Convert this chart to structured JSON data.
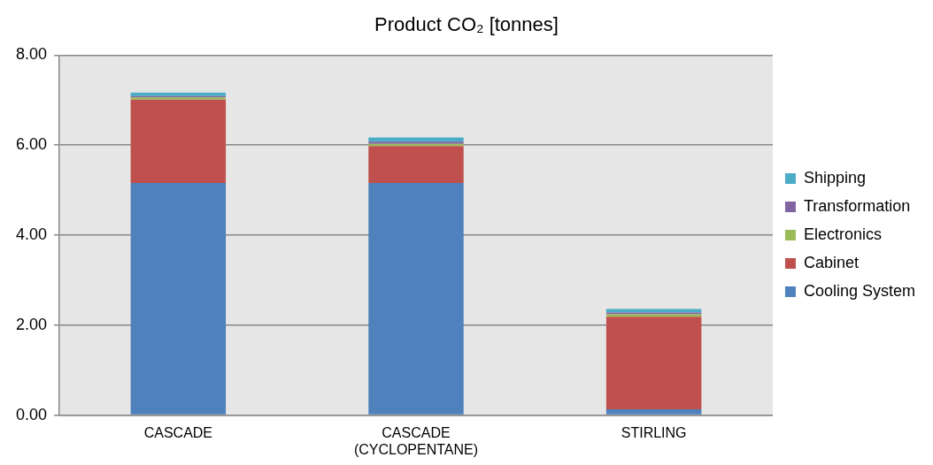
{
  "chart_data": {
    "type": "bar",
    "title": "Product CO₂ [tonnes]",
    "categories": [
      "CASCADE",
      "CASCADE (CYCLOPENTANE)",
      "STIRLING"
    ],
    "stacked": true,
    "series": [
      {
        "name": "Cooling System",
        "color": "#4f81bd",
        "values": [
          5.16,
          5.16,
          0.13
        ]
      },
      {
        "name": "Cabinet",
        "color": "#c0504d",
        "values": [
          1.85,
          0.82,
          2.06
        ]
      },
      {
        "name": "Electronics",
        "color": "#9bbb59",
        "values": [
          0.05,
          0.05,
          0.05
        ]
      },
      {
        "name": "Transformation",
        "color": "#8064a2",
        "values": [
          0.03,
          0.05,
          0.04
        ]
      },
      {
        "name": "Shipping",
        "color": "#4bacc6",
        "values": [
          0.08,
          0.09,
          0.08
        ]
      }
    ],
    "ylim": [
      0,
      8
    ],
    "yticks": [
      {
        "value": 0,
        "label": "0.00"
      },
      {
        "value": 2,
        "label": "2.00"
      },
      {
        "value": 4,
        "label": "4.00"
      },
      {
        "value": 6,
        "label": "6.00"
      },
      {
        "value": 8,
        "label": "8.00"
      }
    ],
    "grid": "y",
    "legend": "right"
  }
}
